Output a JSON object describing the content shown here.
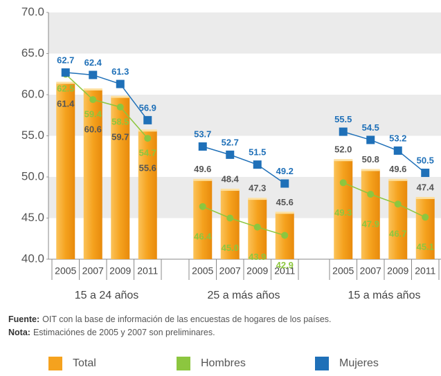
{
  "chart_data": {
    "type": "bar_line",
    "groups": [
      "15 a 24 años",
      "25 a más años",
      "15 a más años"
    ],
    "categories": [
      "2005",
      "2007",
      "2009",
      "2011",
      "2005",
      "2007",
      "2009",
      "2011",
      "2005",
      "2007",
      "2009",
      "2011"
    ],
    "series": [
      {
        "name": "Total",
        "type": "bar",
        "color": "#f5a21e",
        "values": [
          61.4,
          60.6,
          59.7,
          55.6,
          49.6,
          48.4,
          47.3,
          45.6,
          52.0,
          50.8,
          49.6,
          47.4
        ],
        "value_labels": [
          "61.4",
          "60.6",
          "59.7",
          "55.6",
          "49.6",
          "48.4",
          "47.3",
          "45.6",
          "52.0",
          "50.8",
          "49.6",
          "47.4"
        ]
      },
      {
        "name": "Hombres",
        "type": "line",
        "color": "#8cc63f",
        "values": [
          62.5,
          59.4,
          58.5,
          54.7,
          46.4,
          45.0,
          43.9,
          42.9,
          49.3,
          47.9,
          46.7,
          45.1
        ],
        "value_labels": [
          "62.5",
          "59.4",
          "58.5",
          "54.7",
          "46.4",
          "45.0",
          "43.9",
          "42.9",
          "49.3",
          "47.9",
          "46.7",
          "45.1"
        ]
      },
      {
        "name": "Mujeres",
        "type": "line",
        "color": "#1f70b8",
        "values": [
          62.7,
          62.4,
          61.3,
          56.9,
          53.7,
          52.7,
          51.5,
          49.2,
          55.5,
          54.5,
          53.2,
          50.5
        ],
        "value_labels": [
          "62.7",
          "62.4",
          "61.3",
          "56.9",
          "53.7",
          "52.7",
          "51.5",
          "49.2",
          "55.5",
          "54.5",
          "53.2",
          "50.5"
        ]
      }
    ],
    "ylim": [
      40,
      70
    ],
    "yticks": [
      {
        "value": 40,
        "label": "40.0"
      },
      {
        "value": 45,
        "label": "45.0"
      },
      {
        "value": 50,
        "label": "50.0"
      },
      {
        "value": 55,
        "label": "55.0"
      },
      {
        "value": 60,
        "label": "60.0"
      },
      {
        "value": 65,
        "label": "65.0"
      },
      {
        "value": 70,
        "label": "70.0"
      }
    ],
    "notes": [
      {
        "label": "Fuente:",
        "text": "OIT con la base de información de las encuestas de hogares de los países."
      },
      {
        "label": "Nota:",
        "text": "Estimaciónes de 2005 y 2007 son preliminares."
      }
    ]
  }
}
